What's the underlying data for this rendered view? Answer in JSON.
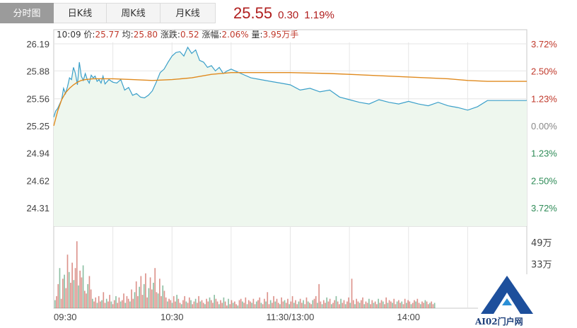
{
  "tabs": [
    {
      "label": "分时图",
      "active": true
    },
    {
      "label": "日K线",
      "active": false
    },
    {
      "label": "周K线",
      "active": false
    },
    {
      "label": "月K线",
      "active": false
    }
  ],
  "quote": {
    "price": "25.55",
    "change": "0.30",
    "change_pct": "1.19%",
    "color": "#b01e1e"
  },
  "info": {
    "time": "10:09",
    "price_label": "价:",
    "price_value": "25.77",
    "avg_label": "均:",
    "avg_value": "25.80",
    "change_label": "涨跌:",
    "change_value": "0.52",
    "pct_label": "涨幅:",
    "pct_value": "2.06%",
    "volume_label": "量:",
    "volume_value": "3.95万手"
  },
  "watermark": {
    "text": "AI02门户网"
  },
  "chart_data": {
    "type": "line",
    "price_axis": {
      "ticks": [
        "26.19",
        "25.88",
        "25.56",
        "25.25",
        "24.94",
        "24.62",
        "24.31"
      ],
      "tick_values": [
        26.19,
        25.88,
        25.56,
        25.25,
        24.94,
        24.62,
        24.31
      ],
      "ylim": [
        24.31,
        26.19
      ],
      "pre_close": 25.25
    },
    "pct_axis": {
      "ticks": [
        "3.72%",
        "2.50%",
        "1.23%",
        "0.00%",
        "1.23%",
        "2.50%",
        "3.72%"
      ],
      "up_color": "#c0392b",
      "zero_color": "#888888",
      "down_color": "#2e8b57"
    },
    "x_ticks": [
      "09:30",
      "10:30",
      "11:30/13:00",
      "14:00"
    ],
    "x_range_minutes": [
      0,
      240
    ],
    "series": [
      {
        "name": "价",
        "color": "#3a9fc9",
        "x": [
          0,
          1,
          2,
          3,
          4,
          5,
          6,
          7,
          8,
          9,
          10,
          11,
          12,
          13,
          14,
          15,
          16,
          17,
          18,
          19,
          20,
          21,
          22,
          23,
          24,
          25,
          26,
          28,
          30,
          32,
          34,
          36,
          38,
          40,
          42,
          44,
          46,
          48,
          50,
          52,
          54,
          56,
          58,
          60,
          62,
          64,
          66,
          68,
          70,
          72,
          74,
          76,
          78,
          80,
          82,
          84,
          86,
          88,
          90,
          95,
          100,
          105,
          110,
          115,
          120,
          125,
          130,
          135,
          140,
          145,
          150,
          155,
          160,
          165,
          170,
          175,
          180,
          185,
          190,
          195,
          200,
          205,
          210,
          215,
          220,
          225,
          230,
          235,
          240
        ],
        "values": [
          25.35,
          25.42,
          25.45,
          25.5,
          25.55,
          25.68,
          25.62,
          25.7,
          25.8,
          25.78,
          25.92,
          25.85,
          25.72,
          25.98,
          25.82,
          25.77,
          25.85,
          25.78,
          25.74,
          25.83,
          25.8,
          25.82,
          25.76,
          25.78,
          25.74,
          25.82,
          25.73,
          25.78,
          25.75,
          25.74,
          25.78,
          25.66,
          25.69,
          25.6,
          25.62,
          25.58,
          25.57,
          25.6,
          25.65,
          25.75,
          25.86,
          25.9,
          25.98,
          26.05,
          26.09,
          26.1,
          26.05,
          26.15,
          26.08,
          26.12,
          26.0,
          25.98,
          25.92,
          25.94,
          25.88,
          25.92,
          25.85,
          25.88,
          25.9,
          25.85,
          25.8,
          25.78,
          25.76,
          25.74,
          25.72,
          25.66,
          25.68,
          25.64,
          25.66,
          25.58,
          25.55,
          25.52,
          25.5,
          25.55,
          25.52,
          25.5,
          25.53,
          25.5,
          25.48,
          25.52,
          25.48,
          25.46,
          25.43,
          25.47,
          25.54,
          25.54,
          25.54,
          25.54,
          25.54
        ]
      },
      {
        "name": "均",
        "color": "#e08a1e",
        "x": [
          0,
          2,
          4,
          6,
          8,
          10,
          12,
          14,
          16,
          20,
          30,
          40,
          50,
          60,
          70,
          80,
          90,
          100,
          120,
          140,
          160,
          180,
          200,
          210,
          220,
          240
        ],
        "values": [
          25.25,
          25.42,
          25.55,
          25.63,
          25.68,
          25.72,
          25.75,
          25.77,
          25.78,
          25.79,
          25.79,
          25.78,
          25.77,
          25.78,
          25.8,
          25.84,
          25.86,
          25.86,
          25.86,
          25.85,
          25.83,
          25.81,
          25.79,
          25.77,
          25.76,
          25.76
        ]
      }
    ],
    "volume_axis": {
      "ticks": [
        "49万",
        "33万"
      ],
      "tick_values": [
        49,
        33
      ],
      "ymax": 57
    },
    "volume_values": [
      6,
      9,
      18,
      30,
      7,
      22,
      25,
      15,
      40,
      27,
      19,
      34,
      21,
      30,
      50,
      17,
      28,
      23,
      32,
      13,
      11,
      18,
      24,
      14,
      7,
      5,
      8,
      4,
      9,
      5,
      6,
      12,
      4,
      7,
      5,
      10,
      5,
      3,
      6,
      9,
      4,
      8,
      5,
      6,
      11,
      4,
      9,
      7,
      5,
      14,
      7,
      12,
      20,
      9,
      16,
      24,
      10,
      18,
      26,
      8,
      15,
      23,
      14,
      19,
      30,
      12,
      11,
      22,
      9,
      17,
      13,
      8,
      5,
      7,
      6,
      4,
      9,
      5,
      10,
      7,
      4,
      3,
      6,
      9,
      5,
      4,
      8,
      6,
      3,
      5,
      7,
      4,
      9,
      5,
      6,
      4,
      3,
      7,
      5,
      8,
      6,
      4,
      10,
      7,
      5,
      3,
      6,
      4,
      8,
      5,
      2,
      7,
      3,
      6,
      4,
      5,
      3,
      2,
      6,
      7,
      5,
      4,
      8,
      3,
      6,
      5,
      4,
      7,
      3,
      5,
      6,
      8,
      4,
      3,
      7,
      5,
      12,
      3,
      6,
      4,
      9,
      5,
      7,
      4,
      3,
      8,
      5,
      6,
      4,
      7,
      3,
      5,
      9,
      4,
      6,
      3,
      5,
      7,
      4,
      6,
      3,
      8,
      5,
      4,
      3,
      6,
      7,
      9,
      4,
      18,
      5,
      3,
      6,
      4,
      8,
      5,
      7,
      3,
      4,
      6,
      9,
      5,
      3,
      7,
      4,
      6,
      3,
      5,
      8,
      4,
      22,
      6,
      3,
      7,
      5,
      4,
      6,
      8,
      3,
      5,
      4,
      7,
      3,
      6,
      4,
      5,
      3,
      7,
      4,
      6,
      5,
      3,
      8,
      4,
      6,
      5,
      4,
      7,
      3,
      5,
      6,
      4,
      5,
      3,
      7,
      4,
      6,
      5,
      3,
      4,
      6,
      5,
      7,
      4,
      3,
      5,
      4,
      6,
      5,
      3,
      4,
      5,
      3,
      4
    ]
  }
}
